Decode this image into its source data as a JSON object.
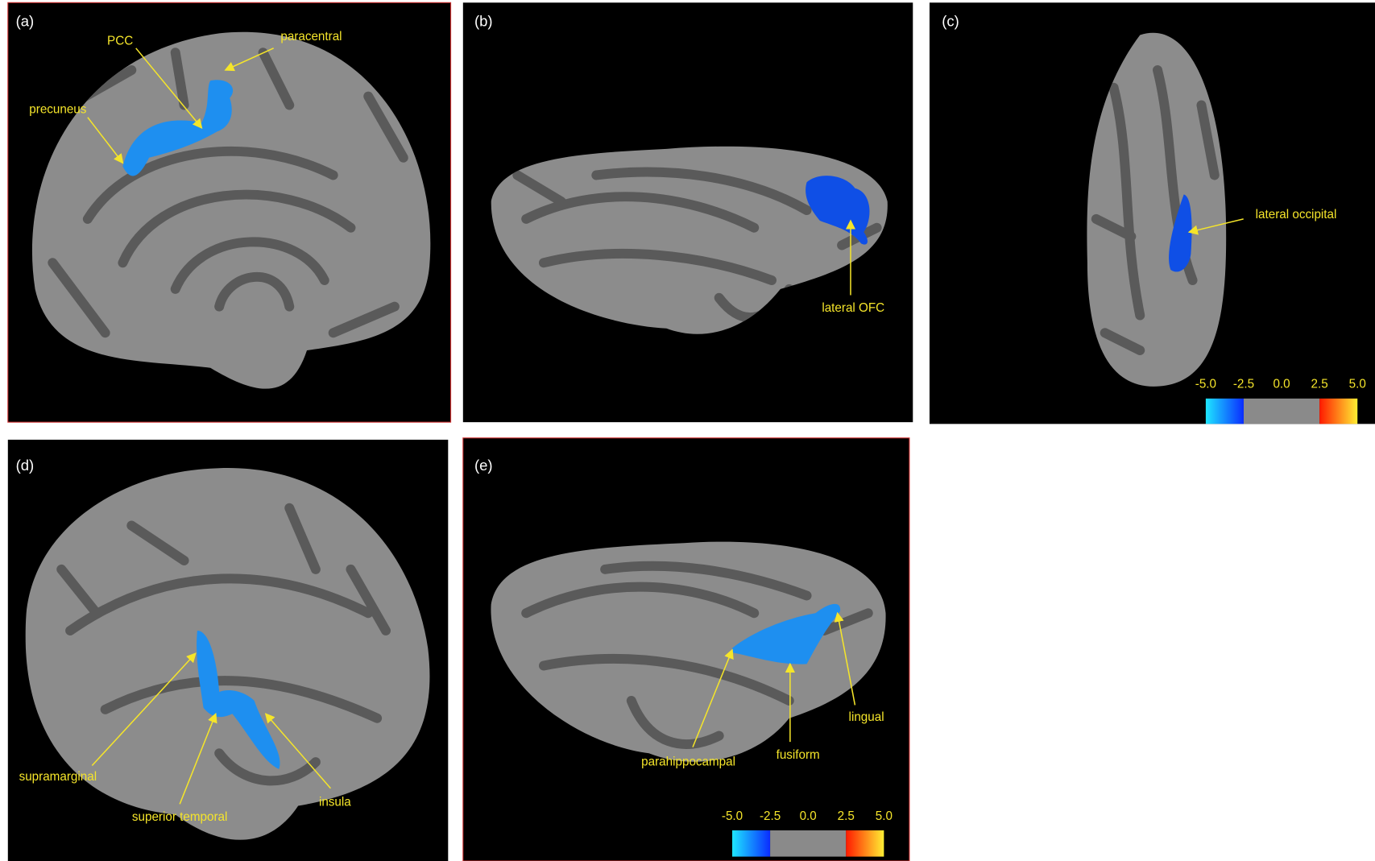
{
  "panels": [
    {
      "letter": "(a)",
      "labels": [
        "PCC",
        "paracentral",
        "precuneus"
      ]
    },
    {
      "letter": "(b)",
      "labels": [
        "lateral OFC"
      ]
    },
    {
      "letter": "(c)",
      "labels": [
        "lateral occipital"
      ]
    },
    {
      "letter": "(d)",
      "labels": [
        "supramarginal",
        "superior temporal",
        "insula"
      ]
    },
    {
      "letter": "(e)",
      "labels": [
        "parahippocampal",
        "fusiform",
        "lingual"
      ]
    }
  ],
  "colorbar": {
    "min": -5,
    "max": 5,
    "ticks": [
      {
        "value": -5,
        "label": "-5.0"
      },
      {
        "value": -2.5,
        "label": "-2.5"
      },
      {
        "value": 0,
        "label": "0.0"
      },
      {
        "value": 2.5,
        "label": "2.5"
      },
      {
        "value": 5,
        "label": "5.0"
      }
    ]
  }
}
